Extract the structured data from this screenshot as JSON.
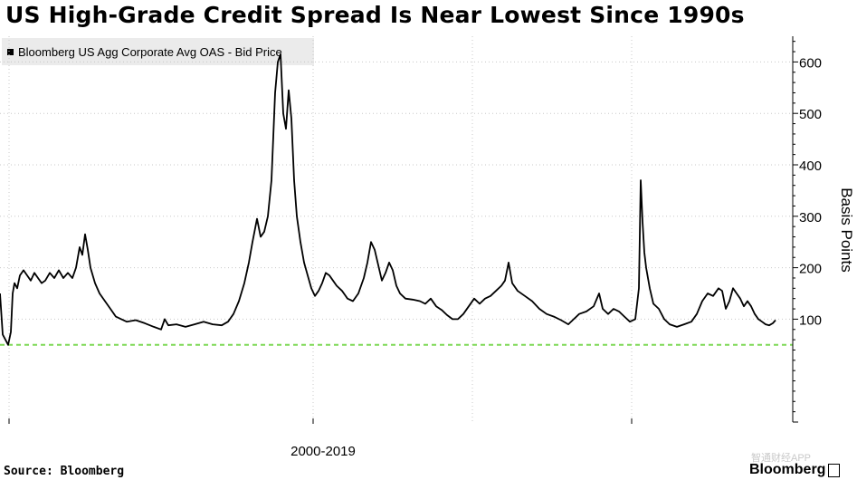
{
  "header": {
    "title": "US High-Grade Credit Spread Is Near Lowest Since 1990s"
  },
  "footer": {
    "source": "Source: Bloomberg",
    "brand": "Bloomberg",
    "watermark": "智通财经APP"
  },
  "colors": {
    "line": "#000000",
    "reference_line": "#7ed957",
    "grid": "#c8c8c8",
    "legend_bg": "#ebebeb"
  },
  "chart_data": {
    "type": "line",
    "title": "US High-Grade Credit Spread Is Near Lowest Since 1990s",
    "legend": {
      "entries": [
        "Bloomberg US Agg Corporate Avg OAS - Bid Price"
      ],
      "position": "top-left"
    },
    "ylabel": "Basis Points",
    "ylim": [
      -100,
      650
    ],
    "yticks": [
      100,
      200,
      300,
      400,
      500,
      600
    ],
    "y_axis_position": "right",
    "xlabel_text": "2000-2019",
    "grid": true,
    "reference_line": {
      "y": 50,
      "style": "dashed"
    },
    "series": [
      {
        "name": "Bloomberg US Agg Corporate Avg OAS - Bid Price",
        "points": [
          [
            0,
            150
          ],
          [
            3,
            70
          ],
          [
            6,
            60
          ],
          [
            9,
            50
          ],
          [
            12,
            75
          ],
          [
            14,
            150
          ],
          [
            16,
            170
          ],
          [
            19,
            160
          ],
          [
            22,
            185
          ],
          [
            26,
            195
          ],
          [
            30,
            185
          ],
          [
            34,
            175
          ],
          [
            38,
            190
          ],
          [
            42,
            180
          ],
          [
            46,
            170
          ],
          [
            50,
            175
          ],
          [
            55,
            190
          ],
          [
            60,
            180
          ],
          [
            65,
            195
          ],
          [
            70,
            180
          ],
          [
            75,
            190
          ],
          [
            80,
            180
          ],
          [
            84,
            200
          ],
          [
            88,
            240
          ],
          [
            91,
            225
          ],
          [
            94,
            265
          ],
          [
            97,
            235
          ],
          [
            100,
            200
          ],
          [
            105,
            170
          ],
          [
            110,
            150
          ],
          [
            116,
            135
          ],
          [
            122,
            120
          ],
          [
            128,
            105
          ],
          [
            134,
            100
          ],
          [
            140,
            95
          ],
          [
            150,
            98
          ],
          [
            160,
            92
          ],
          [
            170,
            85
          ],
          [
            178,
            80
          ],
          [
            182,
            100
          ],
          [
            186,
            88
          ],
          [
            195,
            90
          ],
          [
            205,
            85
          ],
          [
            215,
            90
          ],
          [
            225,
            95
          ],
          [
            235,
            90
          ],
          [
            245,
            88
          ],
          [
            252,
            95
          ],
          [
            258,
            110
          ],
          [
            264,
            135
          ],
          [
            270,
            170
          ],
          [
            275,
            210
          ],
          [
            279,
            250
          ],
          [
            284,
            295
          ],
          [
            288,
            260
          ],
          [
            292,
            270
          ],
          [
            296,
            300
          ],
          [
            300,
            370
          ],
          [
            304,
            540
          ],
          [
            307,
            600
          ],
          [
            310,
            615
          ],
          [
            313,
            500
          ],
          [
            316,
            470
          ],
          [
            319,
            545
          ],
          [
            322,
            490
          ],
          [
            325,
            370
          ],
          [
            328,
            300
          ],
          [
            332,
            250
          ],
          [
            336,
            210
          ],
          [
            340,
            185
          ],
          [
            344,
            160
          ],
          [
            348,
            145
          ],
          [
            352,
            155
          ],
          [
            356,
            170
          ],
          [
            360,
            190
          ],
          [
            364,
            185
          ],
          [
            368,
            175
          ],
          [
            372,
            165
          ],
          [
            378,
            155
          ],
          [
            384,
            140
          ],
          [
            390,
            135
          ],
          [
            396,
            150
          ],
          [
            402,
            180
          ],
          [
            406,
            210
          ],
          [
            410,
            250
          ],
          [
            414,
            235
          ],
          [
            418,
            205
          ],
          [
            422,
            175
          ],
          [
            426,
            190
          ],
          [
            430,
            210
          ],
          [
            434,
            195
          ],
          [
            438,
            165
          ],
          [
            442,
            150
          ],
          [
            448,
            140
          ],
          [
            456,
            138
          ],
          [
            464,
            135
          ],
          [
            470,
            130
          ],
          [
            476,
            140
          ],
          [
            482,
            125
          ],
          [
            488,
            118
          ],
          [
            494,
            108
          ],
          [
            500,
            100
          ],
          [
            506,
            100
          ],
          [
            512,
            110
          ],
          [
            518,
            125
          ],
          [
            524,
            140
          ],
          [
            530,
            130
          ],
          [
            536,
            140
          ],
          [
            542,
            145
          ],
          [
            548,
            155
          ],
          [
            554,
            165
          ],
          [
            558,
            175
          ],
          [
            562,
            210
          ],
          [
            566,
            170
          ],
          [
            572,
            155
          ],
          [
            580,
            145
          ],
          [
            588,
            135
          ],
          [
            596,
            120
          ],
          [
            604,
            110
          ],
          [
            612,
            105
          ],
          [
            620,
            98
          ],
          [
            628,
            90
          ],
          [
            634,
            100
          ],
          [
            640,
            110
          ],
          [
            648,
            115
          ],
          [
            656,
            125
          ],
          [
            662,
            150
          ],
          [
            666,
            120
          ],
          [
            672,
            110
          ],
          [
            678,
            120
          ],
          [
            684,
            115
          ],
          [
            690,
            105
          ],
          [
            696,
            95
          ],
          [
            702,
            100
          ],
          [
            706,
            160
          ],
          [
            708,
            370
          ],
          [
            710,
            290
          ],
          [
            712,
            230
          ],
          [
            714,
            200
          ],
          [
            718,
            160
          ],
          [
            722,
            130
          ],
          [
            728,
            120
          ],
          [
            734,
            100
          ],
          [
            740,
            90
          ],
          [
            748,
            85
          ],
          [
            756,
            90
          ],
          [
            764,
            95
          ],
          [
            770,
            110
          ],
          [
            776,
            135
          ],
          [
            782,
            150
          ],
          [
            788,
            145
          ],
          [
            794,
            160
          ],
          [
            798,
            155
          ],
          [
            802,
            120
          ],
          [
            806,
            135
          ],
          [
            810,
            160
          ],
          [
            814,
            150
          ],
          [
            818,
            140
          ],
          [
            822,
            125
          ],
          [
            826,
            135
          ],
          [
            830,
            125
          ],
          [
            834,
            110
          ],
          [
            838,
            100
          ],
          [
            842,
            95
          ],
          [
            846,
            90
          ],
          [
            850,
            88
          ],
          [
            854,
            92
          ],
          [
            857,
            98
          ]
        ]
      }
    ]
  }
}
